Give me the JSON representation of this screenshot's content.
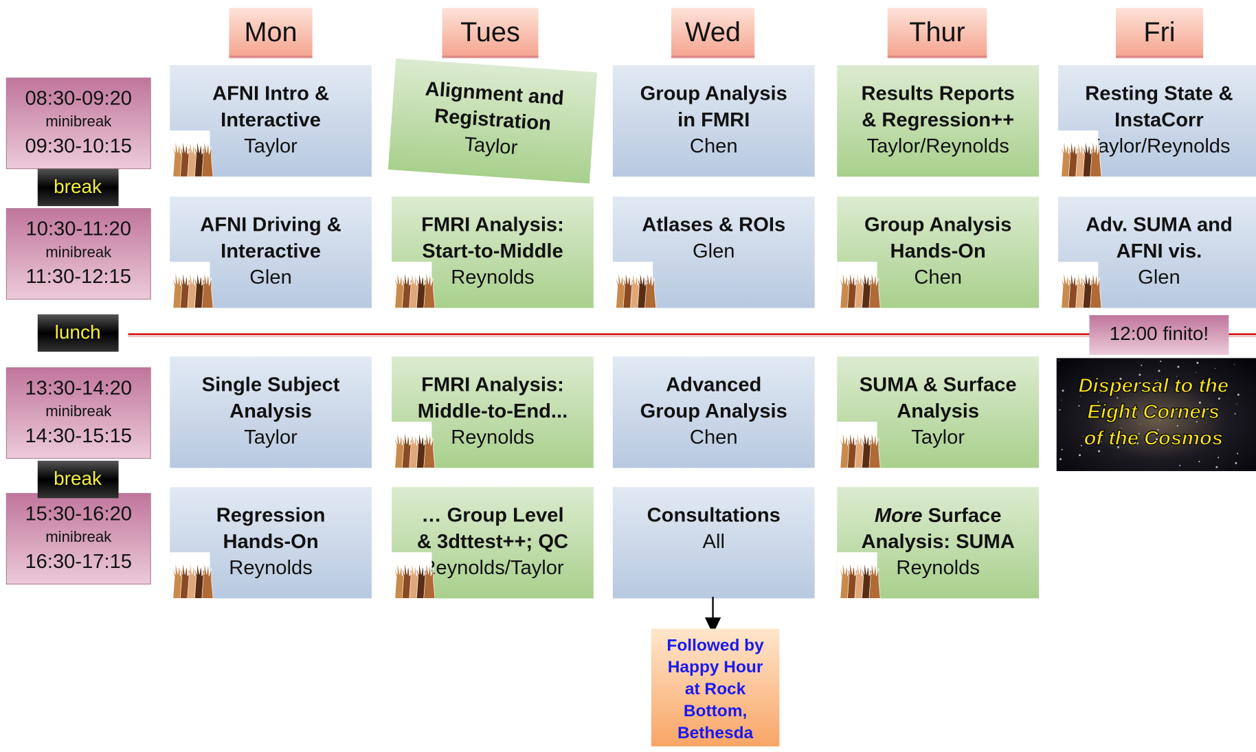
{
  "days": [
    "Mon",
    "Tues",
    "Wed",
    "Thur",
    "Fri"
  ],
  "times": [
    {
      "start": "08:30-09:20",
      "mid": "minibreak",
      "end": "09:30-10:15"
    },
    {
      "start": "10:30-11:20",
      "mid": "minibreak",
      "end": "11:30-12:15"
    },
    {
      "start": "13:30-14:20",
      "mid": "minibreak",
      "end": "14:30-15:15"
    },
    {
      "start": "15:30-16:20",
      "mid": "minibreak",
      "end": "16:30-17:15"
    }
  ],
  "breaks": [
    "break",
    "lunch",
    "break"
  ],
  "sessions": [
    [
      {
        "title": [
          "AFNI Intro &",
          "Interactive"
        ],
        "presenter": "Taylor",
        "color": "blue",
        "icon": true
      },
      {
        "title": [
          "Alignment and",
          "Registration"
        ],
        "presenter": "Taylor",
        "color": "green",
        "icon": false
      },
      {
        "title": [
          "Group Analysis",
          "in FMRI"
        ],
        "presenter": "Chen",
        "color": "blue",
        "icon": false
      },
      {
        "title": [
          "Results Reports",
          "& Regression++"
        ],
        "presenter": "Taylor/Reynolds",
        "color": "green",
        "icon": false
      },
      {
        "title": [
          "Resting State &",
          "InstaCorr"
        ],
        "presenter": "Taylor/Reynolds",
        "color": "blue",
        "icon": true
      }
    ],
    [
      {
        "title": [
          "AFNI Driving &",
          "Interactive"
        ],
        "presenter": "Glen",
        "color": "blue",
        "icon": true
      },
      {
        "title": [
          "FMRI Analysis:",
          "Start-to-Middle"
        ],
        "presenter": "Reynolds",
        "color": "green",
        "icon": true
      },
      {
        "title": [
          "Atlases & ROIs"
        ],
        "presenter": "Glen",
        "color": "blue",
        "icon": true
      },
      {
        "title": [
          "Group Analysis",
          "Hands-On"
        ],
        "presenter": "Chen",
        "color": "green",
        "icon": true
      },
      {
        "title": [
          "Adv. SUMA and",
          "AFNI vis."
        ],
        "presenter": "Glen",
        "color": "blue",
        "icon": true
      }
    ],
    [
      {
        "title": [
          "Single Subject",
          "Analysis"
        ],
        "presenter": "Taylor",
        "color": "blue",
        "icon": false
      },
      {
        "title": [
          "FMRI Analysis:",
          "Middle-to-End..."
        ],
        "presenter": "Reynolds",
        "color": "green",
        "icon": true
      },
      {
        "title": [
          "Advanced",
          "Group Analysis"
        ],
        "presenter": "Chen",
        "color": "blue",
        "icon": false
      },
      {
        "title": [
          "SUMA & Surface",
          "Analysis"
        ],
        "presenter": "Taylor",
        "color": "green",
        "icon": true
      }
    ],
    [
      {
        "title": [
          "Regression",
          "Hands-On"
        ],
        "presenter": "Reynolds",
        "color": "blue",
        "icon": true
      },
      {
        "title": [
          "… Group Level",
          "& 3dttest++; QC"
        ],
        "presenter": "Reynolds/Taylor",
        "color": "green",
        "icon": true
      },
      {
        "title": [
          "Consultations"
        ],
        "presenter": "All",
        "color": "blue",
        "icon": false
      },
      {
        "title": [
          {
            "italic": "More",
            "text": "Surface"
          },
          "Analysis: SUMA"
        ],
        "presenter": "Reynolds",
        "color": "green",
        "icon": true
      }
    ]
  ],
  "finito": "12:00 finito!",
  "dispersal": [
    "Dispersal to the",
    "Eight Corners",
    "of the Cosmos"
  ],
  "happy_hour": [
    "Followed by",
    "Happy Hour",
    "at Rock",
    "Bottom,",
    "Bethesda"
  ]
}
